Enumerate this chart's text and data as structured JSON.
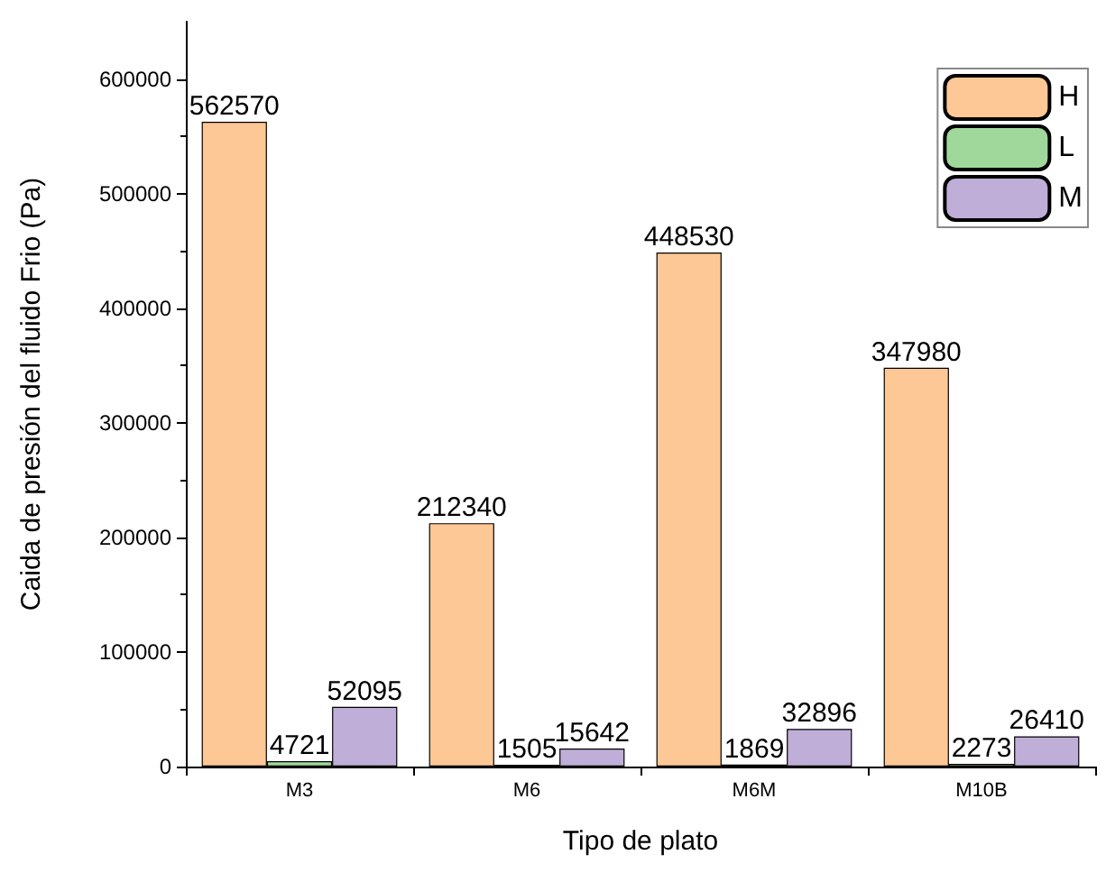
{
  "chart_data": {
    "type": "bar",
    "xlabel": "Tipo de plato",
    "ylabel": "Caida de presión del fluido Frio (Pa)",
    "categories": [
      "M3",
      "M6",
      "M6M",
      "M10B"
    ],
    "series": [
      {
        "name": "H",
        "color": "#fdc896",
        "values": [
          562570,
          212340,
          448530,
          347980
        ]
      },
      {
        "name": "L",
        "color": "#9fd89a",
        "values": [
          4721,
          1505,
          1869,
          2273
        ]
      },
      {
        "name": "M",
        "color": "#bfaed8",
        "values": [
          52095,
          15642,
          32896,
          26410
        ]
      }
    ],
    "ylim": [
      0,
      650000
    ],
    "yticks": [
      0,
      100000,
      200000,
      300000,
      400000,
      500000,
      600000
    ],
    "grid": false,
    "legend": "top right",
    "data_labels": true
  }
}
